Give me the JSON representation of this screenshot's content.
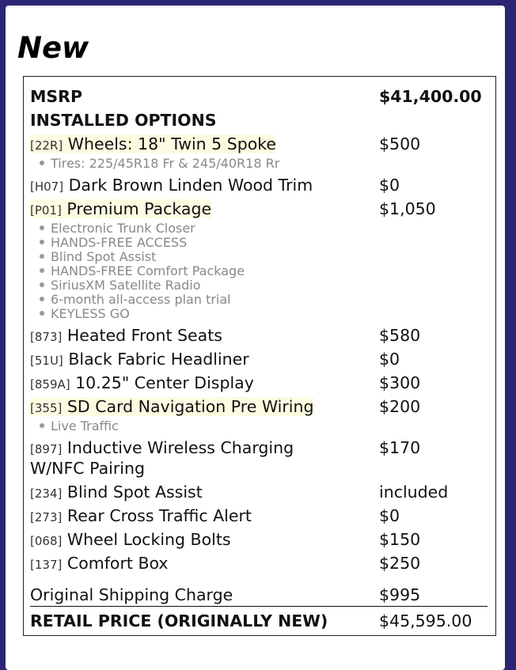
{
  "heading": "New",
  "msrp": {
    "label": "MSRP",
    "price": "$41,400.00"
  },
  "installed_options_label": "INSTALLED OPTIONS",
  "options": [
    {
      "code": "[22R]",
      "name": "Wheels: 18\" Twin 5 Spoke",
      "price": "$500",
      "highlight": true,
      "details": [
        "Tires: 225/45R18 Fr & 245/40R18 Rr"
      ]
    },
    {
      "code": "[H07]",
      "name": "Dark Brown Linden Wood Trim",
      "price": "$0",
      "highlight": false,
      "details": []
    },
    {
      "code": "[P01]",
      "name": "Premium Package",
      "price": "$1,050",
      "highlight": true,
      "details": [
        "Electronic Trunk Closer",
        "HANDS-FREE ACCESS",
        "Blind Spot Assist",
        "HANDS-FREE Comfort Package",
        "SiriusXM Satellite Radio",
        "6-month all-access plan trial",
        "KEYLESS GO"
      ]
    },
    {
      "code": "[873]",
      "name": "Heated Front Seats",
      "price": "$580",
      "highlight": false,
      "details": []
    },
    {
      "code": "[51U]",
      "name": "Black Fabric Headliner",
      "price": "$0",
      "highlight": false,
      "details": []
    },
    {
      "code": "[859A]",
      "name": "10.25\" Center Display",
      "price": "$300",
      "highlight": false,
      "details": []
    },
    {
      "code": "[355]",
      "name": "SD Card Navigation Pre Wiring",
      "price": "$200",
      "highlight": true,
      "details": [
        "Live Traffic"
      ]
    },
    {
      "code": "[897]",
      "name": "Inductive Wireless Charging",
      "name2": "W/NFC Pairing",
      "price": "$170",
      "highlight": false,
      "details": []
    },
    {
      "code": "[234]",
      "name": "Blind Spot Assist",
      "price": "included",
      "highlight": false,
      "details": []
    },
    {
      "code": "[273]",
      "name": "Rear Cross Traffic Alert",
      "price": "$0",
      "highlight": false,
      "details": []
    },
    {
      "code": "[068]",
      "name": "Wheel Locking Bolts",
      "price": "$150",
      "highlight": false,
      "details": []
    },
    {
      "code": "[137]",
      "name": "Comfort Box",
      "price": "$250",
      "highlight": false,
      "details": []
    }
  ],
  "shipping": {
    "label": "Original Shipping Charge",
    "price": "$995"
  },
  "retail": {
    "label": "RETAIL PRICE (ORIGINALLY NEW)",
    "price": "$45,595.00"
  },
  "colors": {
    "background": "#2b2673",
    "highlight": "#fdfbe1"
  }
}
